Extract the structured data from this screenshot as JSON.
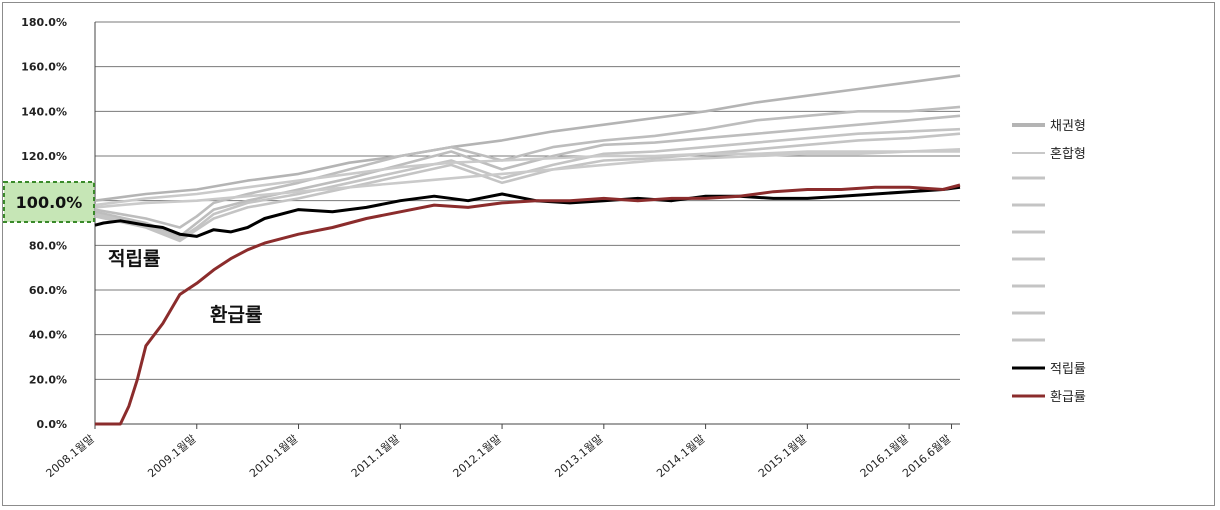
{
  "chart_data": {
    "type": "line",
    "y_ticks": [
      "0.0%",
      "20.0%",
      "40.0%",
      "60.0%",
      "80.0%",
      "100.0%",
      "120.0%",
      "140.0%",
      "160.0%",
      "180.0%"
    ],
    "ylim": [
      0,
      180
    ],
    "grid": true,
    "x_tick_labels": [
      "2008.1월말",
      "2009.1월말",
      "2010.1월말",
      "2011.1월말",
      "2012.1월말",
      "2013.1월말",
      "2014.1월말",
      "2015.1월말",
      "2016.1월말",
      "2016.6월말"
    ],
    "highlight_label": "100.0%",
    "legend_position": "right",
    "legend": [
      {
        "name": "채권형",
        "color": "#b4b4b4"
      },
      {
        "name": "혼합형",
        "color": "#c8c8c8"
      },
      {
        "name": "적립률",
        "color": "#000000"
      },
      {
        "name": "환급률",
        "color": "#8b2c2c"
      }
    ],
    "annotations": [
      "적립률",
      "환급률"
    ],
    "series": [
      {
        "name": "적립률",
        "color": "#000000",
        "x": [
          0,
          1,
          3,
          6,
          8,
          10,
          12,
          14,
          16,
          18,
          20,
          24,
          28,
          32,
          36,
          40,
          44,
          48,
          52,
          56,
          60,
          64,
          68,
          72,
          76,
          80,
          84,
          88,
          92,
          96,
          100,
          102
        ],
        "values": [
          89,
          90,
          91,
          89,
          88,
          85,
          84,
          87,
          86,
          88,
          92,
          96,
          95,
          97,
          100,
          102,
          100,
          103,
          100,
          99,
          100,
          101,
          100,
          102,
          102,
          101,
          101,
          102,
          103,
          104,
          105,
          106
        ]
      },
      {
        "name": "환급률",
        "color": "#8b2c2c",
        "x": [
          0,
          1,
          2,
          3,
          4,
          5,
          6,
          8,
          10,
          12,
          14,
          16,
          18,
          20,
          24,
          28,
          32,
          36,
          40,
          44,
          48,
          52,
          56,
          60,
          64,
          68,
          72,
          76,
          80,
          84,
          88,
          92,
          96,
          100,
          102
        ],
        "values": [
          0,
          0,
          0,
          0,
          8,
          20,
          35,
          45,
          58,
          63,
          69,
          74,
          78,
          81,
          85,
          88,
          92,
          95,
          98,
          97,
          99,
          100,
          100,
          101,
          100,
          101,
          101,
          102,
          104,
          105,
          105,
          106,
          106,
          105,
          107
        ]
      }
    ],
    "gray_series": [
      {
        "color": "#b4b4b4",
        "x": [
          0,
          6,
          12,
          18,
          24,
          30,
          36,
          42,
          48,
          54,
          60,
          66,
          72,
          78,
          84,
          90,
          96,
          102
        ],
        "values": [
          100,
          103,
          105,
          109,
          112,
          117,
          120,
          124,
          127,
          131,
          134,
          137,
          140,
          144,
          147,
          150,
          153,
          156
        ]
      },
      {
        "color": "#bdbdbd",
        "x": [
          0,
          6,
          10,
          12,
          14,
          18,
          24,
          30,
          36,
          42,
          48,
          54,
          60,
          66,
          72,
          78,
          84,
          90,
          96,
          102
        ],
        "values": [
          96,
          92,
          88,
          93,
          99,
          103,
          108,
          114,
          120,
          124,
          118,
          124,
          127,
          129,
          132,
          136,
          138,
          140,
          140,
          142
        ]
      },
      {
        "color": "#bdbdbd",
        "x": [
          0,
          6,
          10,
          12,
          14,
          18,
          24,
          30,
          36,
          42,
          48,
          54,
          60,
          66,
          72,
          78,
          84,
          90,
          96,
          102
        ],
        "values": [
          95,
          90,
          84,
          90,
          96,
          100,
          105,
          110,
          116,
          122,
          114,
          120,
          125,
          126,
          128,
          130,
          132,
          134,
          136,
          138
        ]
      },
      {
        "color": "#c4c4c4",
        "x": [
          0,
          6,
          10,
          12,
          14,
          18,
          24,
          30,
          36,
          42,
          48,
          54,
          60,
          66,
          72,
          78,
          84,
          90,
          96,
          102
        ],
        "values": [
          94,
          89,
          83,
          88,
          94,
          99,
          103,
          108,
          113,
          118,
          110,
          116,
          121,
          122,
          124,
          126,
          128,
          130,
          131,
          132
        ]
      },
      {
        "color": "#c4c4c4",
        "x": [
          0,
          6,
          10,
          12,
          14,
          18,
          24,
          30,
          36,
          42,
          48,
          54,
          60,
          66,
          72,
          78,
          84,
          90,
          96,
          102
        ],
        "values": [
          93,
          88,
          82,
          87,
          92,
          97,
          101,
          106,
          111,
          116,
          108,
          114,
          118,
          119,
          121,
          123,
          125,
          127,
          128,
          130
        ]
      },
      {
        "color": "#cacaca",
        "x": [
          0,
          6,
          12,
          18,
          24,
          30,
          36,
          42,
          48,
          54,
          60,
          66,
          72,
          78,
          84,
          90,
          96,
          102
        ],
        "values": [
          98,
          101,
          103,
          106,
          109,
          112,
          115,
          117,
          118,
          119,
          120,
          120,
          121,
          121,
          122,
          122,
          122,
          123
        ]
      },
      {
        "color": "#cacaca",
        "x": [
          0,
          6,
          12,
          18,
          24,
          30,
          36,
          42,
          48,
          54,
          60,
          66,
          72,
          78,
          84,
          90,
          96,
          102
        ],
        "values": [
          97,
          99,
          100,
          102,
          104,
          106,
          108,
          110,
          112,
          114,
          116,
          118,
          119,
          120,
          121,
          121,
          122,
          122
        ]
      }
    ]
  }
}
